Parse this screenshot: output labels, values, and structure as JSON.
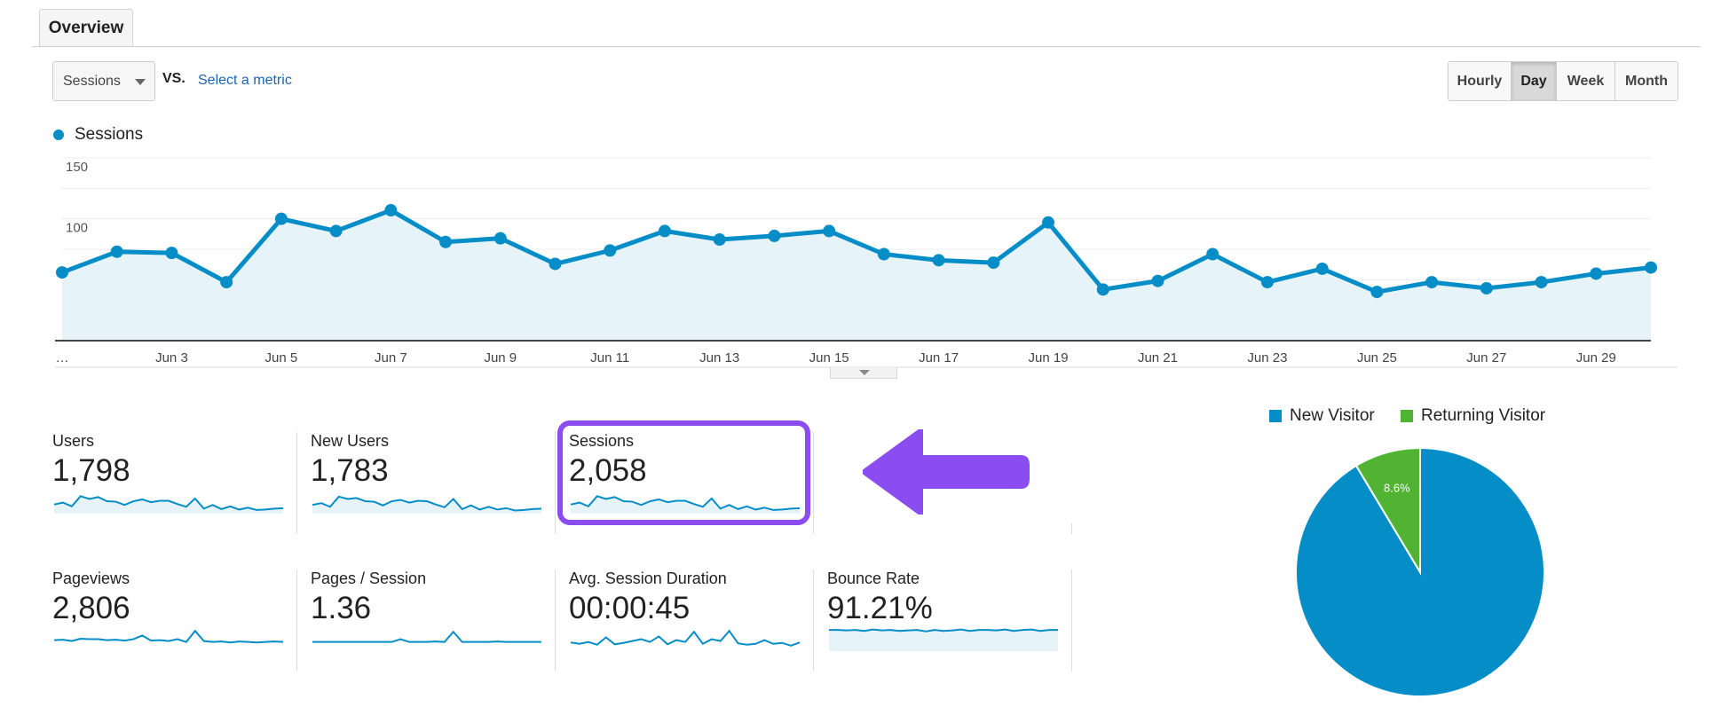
{
  "tabs": {
    "overview": "Overview"
  },
  "toolbar": {
    "metric": "Sessions",
    "vs": "VS.",
    "select_metric": "Select a metric",
    "periods": [
      "Hourly",
      "Day",
      "Week",
      "Month"
    ],
    "active_period": "Day"
  },
  "chart_data": [
    {
      "type": "area",
      "legend": "Sessions",
      "color": "#058dc7",
      "ylim": [
        0,
        150
      ],
      "yticks": [
        150,
        100,
        50
      ],
      "x_tick_labels": [
        "…",
        "Jun 3",
        "Jun 5",
        "Jun 7",
        "Jun 9",
        "Jun 11",
        "Jun 13",
        "Jun 15",
        "Jun 17",
        "Jun 19",
        "Jun 21",
        "Jun 23",
        "Jun 25",
        "Jun 27",
        "Jun 29"
      ],
      "series": [
        {
          "name": "Sessions",
          "x": [
            "Jun 1",
            "Jun 2",
            "Jun 3",
            "Jun 4",
            "Jun 5",
            "Jun 6",
            "Jun 7",
            "Jun 8",
            "Jun 9",
            "Jun 10",
            "Jun 11",
            "Jun 12",
            "Jun 13",
            "Jun 14",
            "Jun 15",
            "Jun 16",
            "Jun 17",
            "Jun 18",
            "Jun 19",
            "Jun 20",
            "Jun 21",
            "Jun 22",
            "Jun 23",
            "Jun 24",
            "Jun 25",
            "Jun 26",
            "Jun 27",
            "Jun 28",
            "Jun 29",
            "Jun 30"
          ],
          "values": [
            56,
            73,
            72,
            48,
            100,
            90,
            107,
            81,
            84,
            63,
            74,
            90,
            83,
            86,
            90,
            71,
            66,
            64,
            97,
            42,
            49,
            71,
            48,
            59,
            40,
            48,
            43,
            48,
            55,
            60
          ]
        }
      ],
      "grid": true
    },
    {
      "type": "pie",
      "legend": [
        "New Visitor",
        "Returning Visitor"
      ],
      "values": [
        91.4,
        8.6
      ],
      "labels": [
        "91.4%",
        "8.6%"
      ],
      "colors": [
        "#058dc7",
        "#50b432"
      ],
      "legend_position": "top"
    }
  ],
  "metrics": [
    {
      "label": "Users",
      "value": "1,798",
      "fill": true,
      "spark": [
        56,
        60,
        52,
        74,
        68,
        72,
        63,
        62,
        55,
        63,
        67,
        61,
        64,
        64,
        57,
        51,
        69,
        47,
        55,
        46,
        52,
        45,
        49,
        44,
        45,
        47,
        48
      ]
    },
    {
      "label": "New Users",
      "value": "1,783",
      "fill": true,
      "spark": [
        55,
        59,
        51,
        73,
        68,
        70,
        63,
        62,
        54,
        63,
        66,
        60,
        64,
        63,
        56,
        50,
        68,
        46,
        54,
        45,
        51,
        45,
        48,
        43,
        44,
        46,
        47
      ]
    },
    {
      "label": "Sessions",
      "value": "2,058",
      "fill": true,
      "spark": [
        56,
        60,
        52,
        74,
        68,
        72,
        63,
        62,
        55,
        63,
        67,
        61,
        64,
        64,
        57,
        51,
        69,
        47,
        55,
        46,
        52,
        45,
        49,
        44,
        45,
        47,
        48
      ]
    },
    {
      "label": "Pageviews",
      "value": "2,806",
      "fill": false,
      "spark": [
        60,
        61,
        58,
        63,
        62,
        62,
        60,
        61,
        59,
        62,
        70,
        59,
        60,
        58,
        62,
        56,
        80,
        58,
        56,
        57,
        55,
        57,
        56,
        55,
        56,
        57,
        56
      ]
    },
    {
      "label": "Pages / Session",
      "value": "1.36",
      "fill": false,
      "spark": [
        56,
        56,
        56,
        56,
        56,
        56,
        56,
        56,
        56,
        56,
        62,
        56,
        56,
        56,
        57,
        56,
        78,
        56,
        56,
        56,
        56,
        57,
        56,
        56,
        56,
        56,
        56
      ]
    },
    {
      "label": "Avg. Session Duration",
      "value": "00:00:45",
      "fill": false,
      "spark": [
        55,
        52,
        56,
        50,
        66,
        51,
        54,
        58,
        62,
        56,
        68,
        51,
        60,
        56,
        78,
        52,
        62,
        58,
        80,
        53,
        50,
        52,
        60,
        52,
        54,
        48,
        55
      ]
    },
    {
      "label": "Bounce Rate",
      "value": "91.21%",
      "fill": true,
      "spark": [
        82,
        82,
        81,
        82,
        80,
        83,
        81,
        82,
        80,
        81,
        82,
        79,
        82,
        80,
        81,
        83,
        80,
        82,
        82,
        81,
        83,
        80,
        82,
        83,
        80,
        82,
        82
      ]
    }
  ]
}
